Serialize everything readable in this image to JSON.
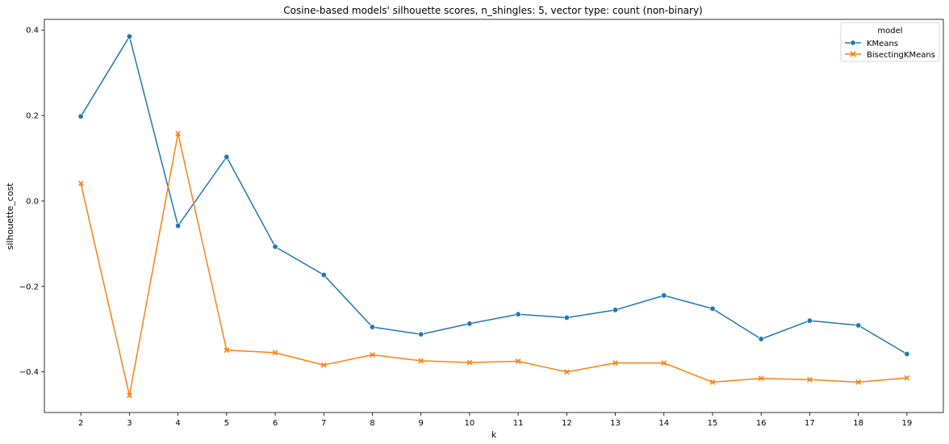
{
  "chart_data": {
    "type": "line",
    "title": "Cosine-based models' silhouette scores, n_shingles: 5, vector type: count (non-binary)",
    "xlabel": "k",
    "ylabel": "silhouette_cost",
    "x": [
      2,
      3,
      4,
      5,
      6,
      7,
      8,
      9,
      10,
      11,
      12,
      13,
      14,
      15,
      16,
      17,
      18,
      19
    ],
    "xlim": [
      1.25,
      19.75
    ],
    "ylim": [
      -0.495,
      0.425
    ],
    "yticks": [
      0.4,
      0.2,
      0.0,
      -0.2,
      -0.4
    ],
    "ytick_labels": [
      "0.4",
      "0.2",
      "0.0",
      "−0.2",
      "−0.4"
    ],
    "grid": false,
    "legend": {
      "title": "model",
      "placement": "upper right"
    },
    "series": [
      {
        "name": "KMeans",
        "color": "#1f77b4",
        "marker": "circle",
        "values": [
          0.198,
          0.385,
          -0.058,
          0.103,
          -0.107,
          -0.173,
          -0.295,
          -0.312,
          -0.287,
          -0.265,
          -0.273,
          -0.255,
          -0.221,
          -0.252,
          -0.323,
          -0.28,
          -0.291,
          -0.358
        ]
      },
      {
        "name": "BisectingKMeans",
        "color": "#ff7f0e",
        "marker": "x",
        "values": [
          0.041,
          -0.455,
          0.158,
          -0.349,
          -0.355,
          -0.384,
          -0.36,
          -0.374,
          -0.378,
          -0.375,
          -0.4,
          -0.379,
          -0.379,
          -0.424,
          -0.415,
          -0.418,
          -0.424,
          -0.414
        ]
      }
    ]
  }
}
